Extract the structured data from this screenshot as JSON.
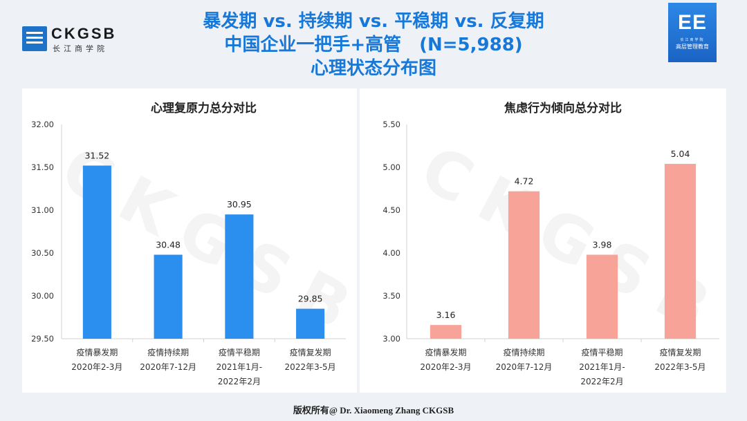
{
  "header": {
    "logo_left_text": "CKGSB",
    "logo_left_sub": "长江商学院",
    "logo_right_text": "EE",
    "logo_right_small": "长江商学院",
    "logo_right_sub": "高层管理教育",
    "title_lines": [
      "暴发期 vs. 持续期 vs. 平稳期 vs. 反复期",
      "中国企业一把手+高管　(N=5,988)",
      "心理状态分布图"
    ]
  },
  "footer": {
    "copyright": "版权所有@ Dr. Xiaomeng Zhang CKGSB"
  },
  "watermark": "CKGSB",
  "colors": {
    "title": "#1878d8",
    "bar_left": "#2b8ff0",
    "bar_right": "#f7a398"
  },
  "chart_data": [
    {
      "type": "bar",
      "title": "心理复原力总分对比",
      "categories": [
        [
          "疫情暴发期",
          "2020年2-3月"
        ],
        [
          "疫情持续期",
          "2020年7-12月"
        ],
        [
          "疫情平稳期",
          "2021年1月-",
          "2022年2月"
        ],
        [
          "疫情复发期",
          "2022年3-5月"
        ]
      ],
      "values": [
        31.52,
        30.48,
        30.95,
        29.85
      ],
      "value_labels": [
        "31.52",
        "30.48",
        "30.95",
        "29.85"
      ],
      "ylim": [
        29.5,
        32.0
      ],
      "yticks": [
        "29.50",
        "30.00",
        "30.50",
        "31.00",
        "31.50",
        "32.00"
      ],
      "color": "#2b8ff0",
      "grid": false
    },
    {
      "type": "bar",
      "title": "焦虑行为倾向总分对比",
      "categories": [
        [
          "疫情暴发期",
          "2020年2-3月"
        ],
        [
          "疫情持续期",
          "2020年7-12月"
        ],
        [
          "疫情平稳期",
          "2021年1月-",
          "2022年2月"
        ],
        [
          "疫情复发期",
          "2022年3-5月"
        ]
      ],
      "values": [
        3.16,
        4.72,
        3.98,
        5.04
      ],
      "value_labels": [
        "3.16",
        "4.72",
        "3.98",
        "5.04"
      ],
      "ylim": [
        3.0,
        5.5
      ],
      "yticks": [
        "3.00",
        "3.50",
        "4.00",
        "4.50",
        "5.00",
        "5.50"
      ],
      "color": "#f7a398",
      "grid": false
    }
  ]
}
